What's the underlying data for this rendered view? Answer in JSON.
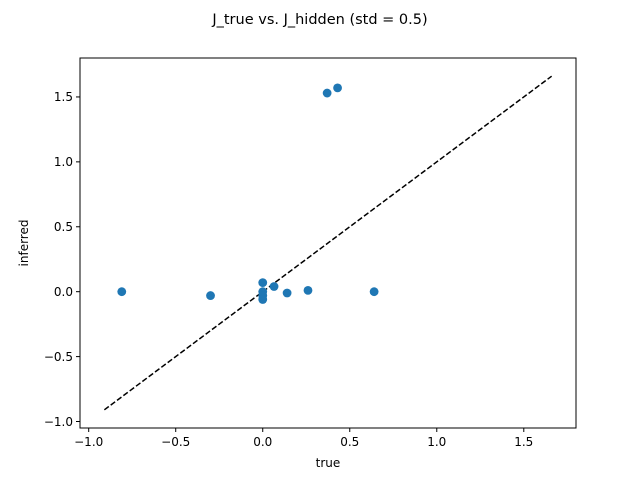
{
  "chart_data": {
    "type": "scatter",
    "title": "J_true vs. J_hidden (std = 0.5)",
    "xlabel": "true",
    "ylabel": "inferred",
    "xlim": [
      -1.05,
      1.8
    ],
    "ylim": [
      -1.05,
      1.8
    ],
    "xticks": [
      -1.0,
      -0.5,
      0.0,
      0.5,
      1.0,
      1.5
    ],
    "xtick_labels": [
      "−1.0",
      "−0.5",
      "0.0",
      "0.5",
      "1.0",
      "1.5"
    ],
    "yticks": [
      -1.0,
      -0.5,
      0.0,
      0.5,
      1.0,
      1.5
    ],
    "ytick_labels": [
      "−1.0",
      "−0.5",
      "0.0",
      "0.5",
      "1.0",
      "1.5"
    ],
    "grid": false,
    "legend": "none",
    "marker_color": "#1f77b4",
    "points": [
      {
        "x": -0.81,
        "y": 0.0
      },
      {
        "x": -0.3,
        "y": -0.03
      },
      {
        "x": 0.0,
        "y": 0.07
      },
      {
        "x": 0.0,
        "y": 0.0
      },
      {
        "x": 0.0,
        "y": -0.03
      },
      {
        "x": 0.0,
        "y": -0.06
      },
      {
        "x": 0.065,
        "y": 0.04
      },
      {
        "x": 0.14,
        "y": -0.01
      },
      {
        "x": 0.26,
        "y": 0.01
      },
      {
        "x": 0.37,
        "y": 1.53
      },
      {
        "x": 0.43,
        "y": 1.57
      },
      {
        "x": 0.64,
        "y": 0.0
      }
    ],
    "reference_line": {
      "style": "dashed",
      "color": "#000000",
      "from": [
        -0.91,
        -0.91
      ],
      "to": [
        1.66,
        1.66
      ]
    }
  }
}
